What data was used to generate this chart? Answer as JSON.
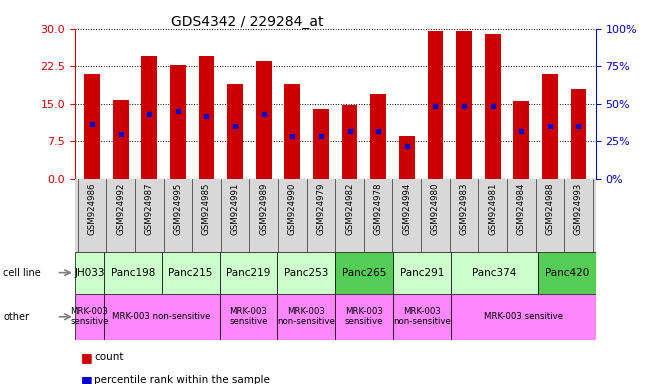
{
  "title": "GDS4342 / 229284_at",
  "samples": [
    "GSM924986",
    "GSM924992",
    "GSM924987",
    "GSM924995",
    "GSM924985",
    "GSM924991",
    "GSM924989",
    "GSM924990",
    "GSM924979",
    "GSM924982",
    "GSM924978",
    "GSM924994",
    "GSM924980",
    "GSM924983",
    "GSM924981",
    "GSM924984",
    "GSM924988",
    "GSM924993"
  ],
  "counts": [
    21.0,
    15.8,
    24.5,
    22.8,
    24.5,
    19.0,
    23.5,
    19.0,
    14.0,
    14.8,
    17.0,
    8.5,
    29.5,
    29.5,
    29.0,
    15.5,
    21.0,
    18.0
  ],
  "percentiles": [
    11.0,
    9.0,
    13.0,
    13.5,
    12.5,
    10.5,
    13.0,
    8.5,
    8.5,
    9.5,
    9.5,
    6.5,
    14.5,
    14.5,
    14.5,
    9.5,
    10.5,
    10.5
  ],
  "cell_lines": [
    {
      "name": "JH033",
      "start": 0,
      "end": 1,
      "color": "#ccffcc"
    },
    {
      "name": "Panc198",
      "start": 1,
      "end": 3,
      "color": "#ccffcc"
    },
    {
      "name": "Panc215",
      "start": 3,
      "end": 5,
      "color": "#ccffcc"
    },
    {
      "name": "Panc219",
      "start": 5,
      "end": 7,
      "color": "#ccffcc"
    },
    {
      "name": "Panc253",
      "start": 7,
      "end": 9,
      "color": "#ccffcc"
    },
    {
      "name": "Panc265",
      "start": 9,
      "end": 11,
      "color": "#55cc55"
    },
    {
      "name": "Panc291",
      "start": 11,
      "end": 13,
      "color": "#ccffcc"
    },
    {
      "name": "Panc374",
      "start": 13,
      "end": 16,
      "color": "#ccffcc"
    },
    {
      "name": "Panc420",
      "start": 16,
      "end": 18,
      "color": "#55cc55"
    }
  ],
  "other_annotations": [
    {
      "text": "MRK-003\nsensitive",
      "start": 0,
      "end": 1,
      "color": "#ff88ff"
    },
    {
      "text": "MRK-003 non-sensitive",
      "start": 1,
      "end": 5,
      "color": "#ff88ff"
    },
    {
      "text": "MRK-003\nsensitive",
      "start": 5,
      "end": 7,
      "color": "#ff88ff"
    },
    {
      "text": "MRK-003\nnon-sensitive",
      "start": 7,
      "end": 9,
      "color": "#ff88ff"
    },
    {
      "text": "MRK-003\nsensitive",
      "start": 9,
      "end": 11,
      "color": "#ff88ff"
    },
    {
      "text": "MRK-003\nnon-sensitive",
      "start": 11,
      "end": 13,
      "color": "#ff88ff"
    },
    {
      "text": "MRK-003 sensitive",
      "start": 13,
      "end": 18,
      "color": "#ff88ff"
    }
  ],
  "ylim_left": [
    0,
    30
  ],
  "ylim_right": [
    0,
    100
  ],
  "yticks_left": [
    0,
    7.5,
    15,
    22.5,
    30
  ],
  "yticks_right": [
    0,
    25,
    50,
    75,
    100
  ],
  "bar_color": "#cc0000",
  "dot_color": "#0000cc",
  "bg_color": "#d8d8d8",
  "left_axis_color": "#cc0000",
  "right_axis_color": "#0000cc"
}
